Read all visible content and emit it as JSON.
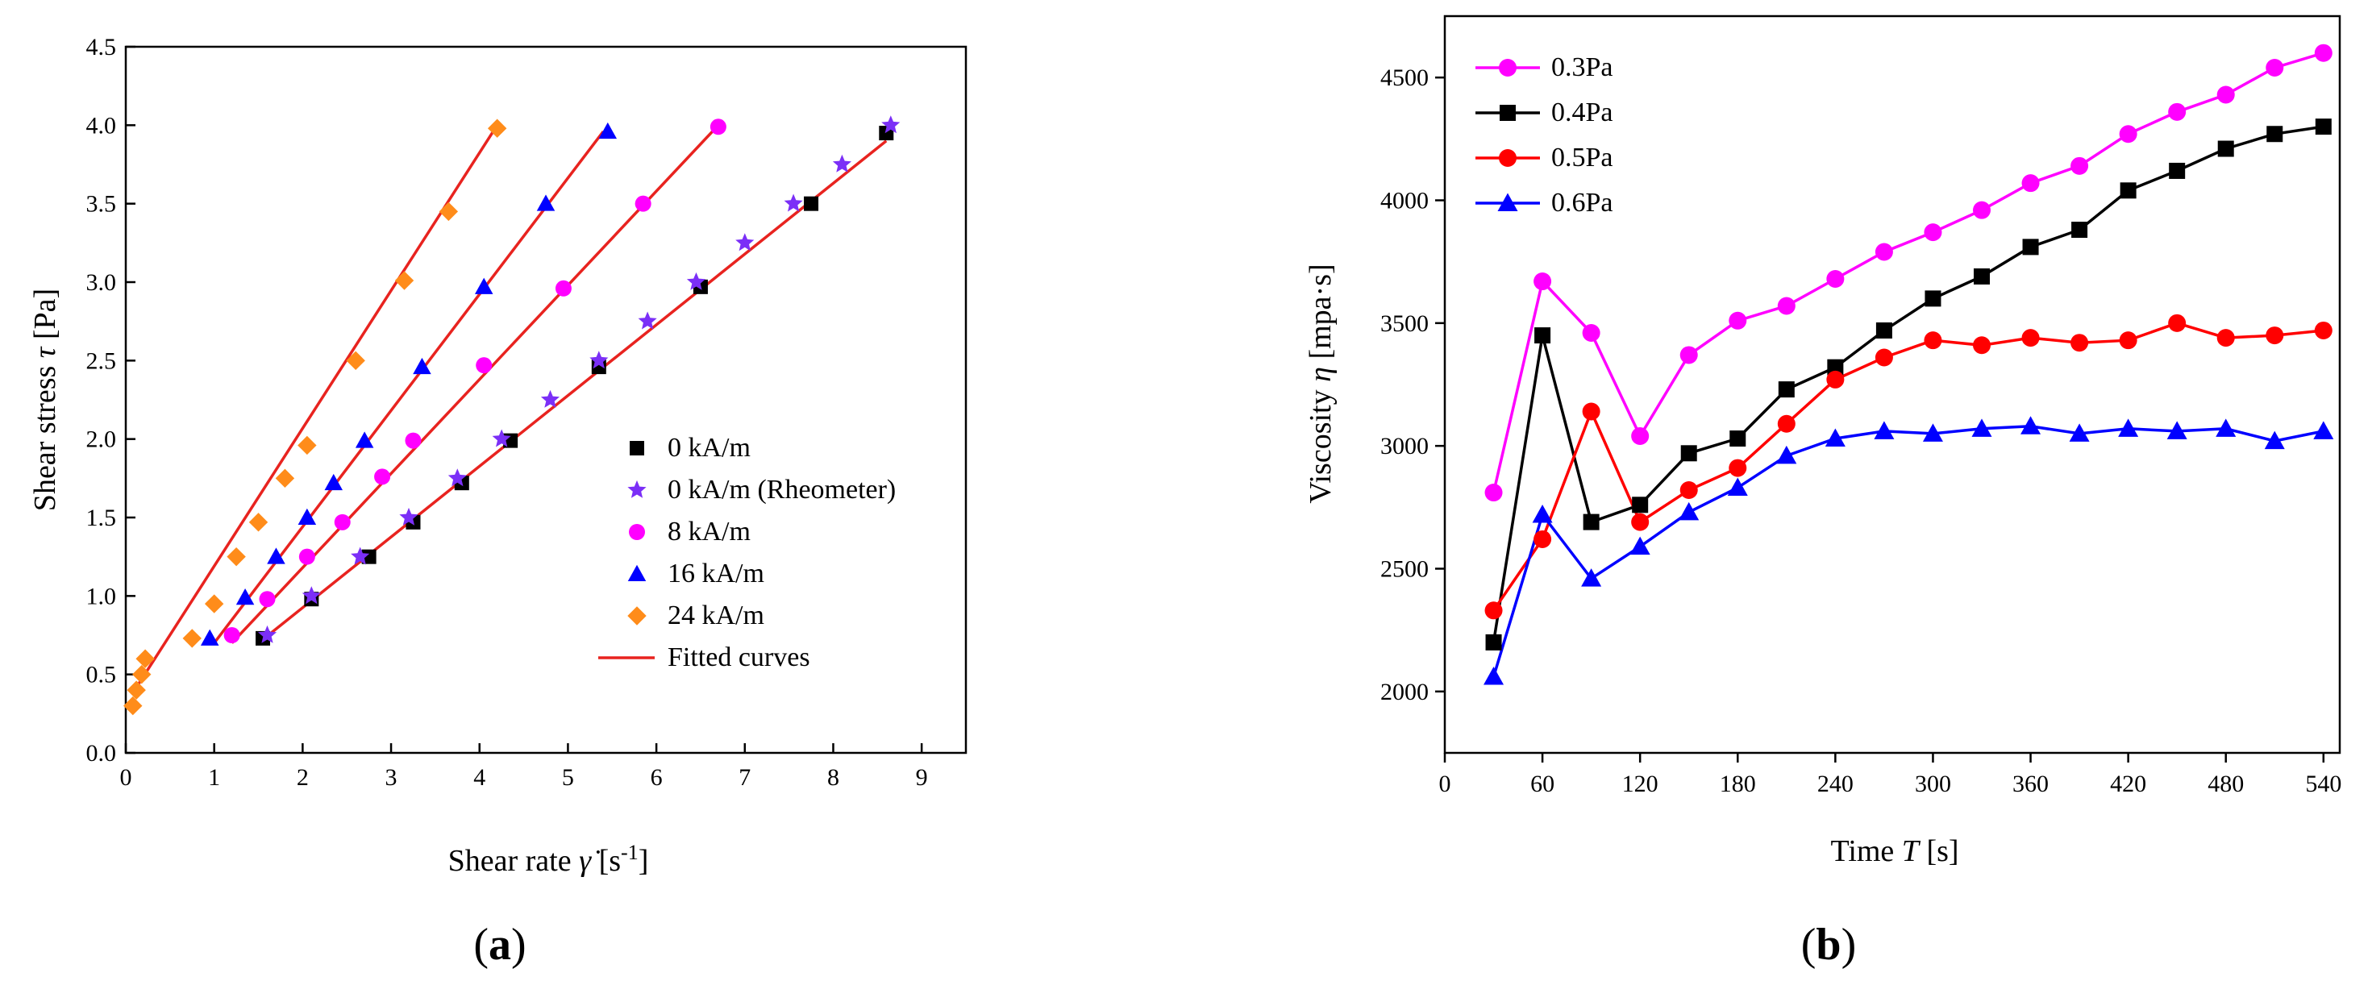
{
  "chart_data": [
    {
      "type": "scatter",
      "panel_label": "(a)",
      "xlabel": "Shear rate γ̇ [s-1]",
      "ylabel": "Shear stress τ [Pa]",
      "xlim": [
        0,
        9.5
      ],
      "ylim": [
        0,
        4.5
      ],
      "xticks": [
        "0",
        "1",
        "2",
        "3",
        "4",
        "5",
        "6",
        "7",
        "8",
        "9"
      ],
      "yticks": [
        "0.0",
        "0.5",
        "1.0",
        "1.5",
        "2.0",
        "2.5",
        "3.0",
        "3.5",
        "4.0",
        "4.5"
      ],
      "legend_position": "bottom-right",
      "series": [
        {
          "name": "0 kA/m",
          "marker": "square",
          "color": "#000000",
          "points": [
            [
              1.55,
              0.73
            ],
            [
              2.1,
              0.98
            ],
            [
              2.75,
              1.25
            ],
            [
              3.25,
              1.47
            ],
            [
              3.8,
              1.72
            ],
            [
              4.35,
              1.99
            ],
            [
              5.35,
              2.46
            ],
            [
              6.5,
              2.97
            ],
            [
              7.75,
              3.5
            ],
            [
              8.6,
              3.95
            ]
          ]
        },
        {
          "name": "0 kA/m (Rheometer)",
          "marker": "star",
          "color": "#7B2FF7",
          "points": [
            [
              1.6,
              0.75
            ],
            [
              2.1,
              1.0
            ],
            [
              2.65,
              1.25
            ],
            [
              3.2,
              1.5
            ],
            [
              3.75,
              1.75
            ],
            [
              4.25,
              2.0
            ],
            [
              4.8,
              2.25
            ],
            [
              5.35,
              2.5
            ],
            [
              5.9,
              2.75
            ],
            [
              6.45,
              3.0
            ],
            [
              7.0,
              3.25
            ],
            [
              7.55,
              3.5
            ],
            [
              8.1,
              3.75
            ],
            [
              8.65,
              4.0
            ]
          ]
        },
        {
          "name": "8 kA/m",
          "marker": "circle",
          "color": "#FF00FF",
          "points": [
            [
              1.2,
              0.75
            ],
            [
              1.6,
              0.98
            ],
            [
              2.05,
              1.25
            ],
            [
              2.45,
              1.47
            ],
            [
              2.9,
              1.76
            ],
            [
              3.25,
              1.99
            ],
            [
              4.05,
              2.47
            ],
            [
              4.95,
              2.96
            ],
            [
              5.85,
              3.5
            ],
            [
              6.7,
              3.99
            ]
          ]
        },
        {
          "name": "16 kA/m",
          "marker": "triangle",
          "color": "#0000FF",
          "points": [
            [
              0.95,
              0.73
            ],
            [
              1.35,
              0.99
            ],
            [
              1.7,
              1.25
            ],
            [
              2.05,
              1.5
            ],
            [
              2.35,
              1.72
            ],
            [
              2.7,
              1.99
            ],
            [
              3.35,
              2.46
            ],
            [
              4.05,
              2.97
            ],
            [
              4.75,
              3.5
            ],
            [
              5.45,
              3.96
            ]
          ]
        },
        {
          "name": "24 kA/m",
          "marker": "diamond",
          "color": "#FF8C1A",
          "points": [
            [
              0.08,
              0.3
            ],
            [
              0.12,
              0.4
            ],
            [
              0.18,
              0.5
            ],
            [
              0.22,
              0.6
            ],
            [
              0.75,
              0.73
            ],
            [
              1.0,
              0.95
            ],
            [
              1.25,
              1.25
            ],
            [
              1.5,
              1.47
            ],
            [
              1.8,
              1.75
            ],
            [
              2.05,
              1.96
            ],
            [
              2.6,
              2.5
            ],
            [
              3.15,
              3.01
            ],
            [
              3.65,
              3.45
            ],
            [
              4.2,
              3.98
            ]
          ]
        }
      ],
      "fitted_curves": {
        "name": "Fitted curves",
        "color": "#E8231F",
        "lines": [
          [
            [
              0.1,
              0.4
            ],
            [
              4.2,
              4.0
            ]
          ],
          [
            [
              1.0,
              0.7
            ],
            [
              5.4,
              3.96
            ]
          ],
          [
            [
              1.2,
              0.7
            ],
            [
              6.7,
              4.0
            ]
          ],
          [
            [
              1.5,
              0.7
            ],
            [
              8.6,
              3.9
            ]
          ]
        ]
      }
    },
    {
      "type": "line",
      "panel_label": "(b)",
      "xlabel": "Time T [s]",
      "ylabel": "Viscosity η [mpa·s]",
      "xlim": [
        0,
        550
      ],
      "ylim": [
        1750,
        4750
      ],
      "xticks": [
        "0",
        "60",
        "120",
        "180",
        "240",
        "300",
        "360",
        "420",
        "480",
        "540"
      ],
      "yticks": [
        "2000",
        "2500",
        "3000",
        "3500",
        "4000",
        "4500"
      ],
      "legend_position": "top-left",
      "x": [
        30,
        60,
        90,
        120,
        150,
        180,
        210,
        240,
        270,
        300,
        330,
        360,
        390,
        420,
        450,
        480,
        510,
        540
      ],
      "series": [
        {
          "name": "0.3Pa",
          "marker": "circle",
          "color": "#FF00FF",
          "values": [
            2810,
            3670,
            3460,
            3040,
            3370,
            3510,
            3570,
            3680,
            3790,
            3870,
            3960,
            4070,
            4140,
            4270,
            4360,
            4430,
            4540,
            4600
          ]
        },
        {
          "name": "0.4Pa",
          "marker": "square",
          "color": "#000000",
          "values": [
            2200,
            3450,
            2690,
            2760,
            2970,
            3030,
            3230,
            3320,
            3470,
            3600,
            3690,
            3810,
            3880,
            4040,
            4120,
            4210,
            4270,
            4300
          ]
        },
        {
          "name": "0.5Pa",
          "marker": "circle",
          "color": "#FF0000",
          "values": [
            2330,
            2620,
            3140,
            2690,
            2820,
            2910,
            3090,
            3270,
            3360,
            3430,
            3410,
            3440,
            3420,
            3430,
            3500,
            3440,
            3450,
            3470
          ]
        },
        {
          "name": "0.6Pa",
          "marker": "triangle",
          "color": "#0000FF",
          "values": [
            2060,
            2720,
            2460,
            2590,
            2730,
            2830,
            2960,
            3030,
            3060,
            3050,
            3070,
            3080,
            3050,
            3070,
            3060,
            3070,
            3020,
            3060
          ]
        }
      ]
    }
  ]
}
